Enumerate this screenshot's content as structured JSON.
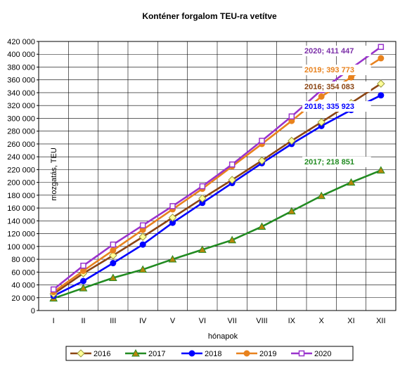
{
  "chart_data": {
    "type": "line",
    "title": "Konténer forgalom TEU-ra vetítve",
    "xlabel": "hónapok",
    "ylabel": "mozgatás, TEU",
    "categories": [
      "I",
      "II",
      "III",
      "IV",
      "V",
      "VI",
      "VII",
      "VIII",
      "IX",
      "X",
      "XI",
      "XII"
    ],
    "ylim": [
      0,
      420000
    ],
    "ytick_step": 20000,
    "yticks": [
      "0",
      "20 000",
      "40 000",
      "60 000",
      "80 000",
      "100 000",
      "120 000",
      "140 000",
      "160 000",
      "180 000",
      "200 000",
      "220 000",
      "240 000",
      "260 000",
      "280 000",
      "300 000",
      "320 000",
      "340 000",
      "360 000",
      "380 000",
      "400 000",
      "420 000"
    ],
    "grid": true,
    "legend_position": "bottom",
    "series": [
      {
        "name": "2016",
        "color": "#8B4513",
        "marker": "diamond",
        "marker_fill": "#FFFF99",
        "values": [
          26000,
          58000,
          86000,
          115000,
          145000,
          175000,
          204000,
          234000,
          265000,
          294000,
          324000,
          354083
        ]
      },
      {
        "name": "2017",
        "color": "#228B22",
        "marker": "triangle",
        "marker_fill": "#B8860B",
        "values": [
          19000,
          35000,
          51000,
          64000,
          80000,
          95000,
          110000,
          131000,
          155000,
          179000,
          200000,
          218851
        ]
      },
      {
        "name": "2018",
        "color": "#0000FF",
        "marker": "circle",
        "marker_fill": "#0000FF",
        "values": [
          23000,
          46000,
          74000,
          103000,
          137000,
          168000,
          199000,
          230000,
          260000,
          288000,
          313000,
          335923
        ]
      },
      {
        "name": "2019",
        "color": "#E8821E",
        "marker": "circle",
        "marker_fill": "#E8821E",
        "values": [
          29000,
          62000,
          94000,
          126000,
          158000,
          190000,
          225000,
          260000,
          296000,
          334000,
          364000,
          393773
        ]
      },
      {
        "name": "2020",
        "color": "#9933CC",
        "marker": "square",
        "marker_fill": "#FFFFFF",
        "values": [
          33000,
          70000,
          103000,
          133000,
          163000,
          194000,
          228000,
          265000,
          303000,
          344000,
          378000,
          411447
        ]
      }
    ],
    "annotations": [
      {
        "text": "2020; 411 447",
        "color": "#7B2FA8",
        "series": "2020"
      },
      {
        "text": "2019; 393 773",
        "color": "#E8821E",
        "series": "2019"
      },
      {
        "text": "2016; 354 083",
        "color": "#8B4513",
        "series": "2016"
      },
      {
        "text": "2018; 335 923",
        "color": "#0000FF",
        "series": "2018"
      },
      {
        "text": "2017; 218 851",
        "color": "#228B22",
        "series": "2017"
      }
    ]
  }
}
